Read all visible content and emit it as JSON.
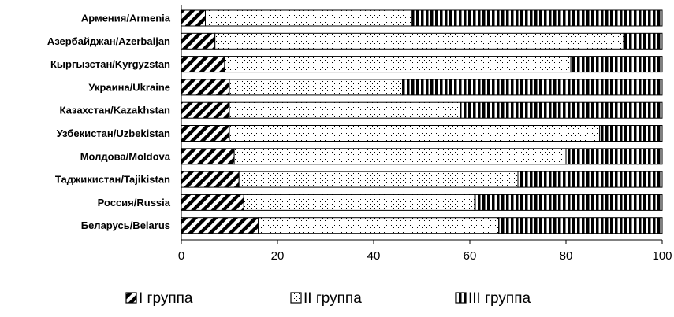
{
  "chart_data": {
    "type": "bar",
    "orientation": "horizontal",
    "stacked": true,
    "categories": [
      "Армения/Armenia",
      "Азербайджан/Azerbaijan",
      "Кыргызстан/Kyrgyzstan",
      "Украина/Ukraine",
      "Казахстан/Kazakhstan",
      "Узбекистан/Uzbekistan",
      "Молдова/Moldova",
      "Таджикистан/Tajikistan",
      "Россия/Russia",
      "Беларусь/Belarus"
    ],
    "series": [
      {
        "name": "I группа",
        "pattern": "diagonal-hatch",
        "values": [
          5,
          7,
          9,
          10,
          10,
          10,
          11,
          12,
          13,
          16
        ]
      },
      {
        "name": "II группа",
        "pattern": "dots",
        "values": [
          43,
          85,
          72,
          36,
          48,
          77,
          69,
          58,
          48,
          50
        ]
      },
      {
        "name": "III группа",
        "pattern": "vertical-stripes",
        "values": [
          52,
          8,
          19,
          54,
          42,
          13,
          20,
          30,
          39,
          34
        ]
      }
    ],
    "xlim": [
      0,
      100
    ],
    "xticks": [
      0,
      20,
      40,
      60,
      80,
      100
    ],
    "title": "",
    "xlabel": "",
    "ylabel": "",
    "grid": false,
    "legend_position": "bottom"
  }
}
